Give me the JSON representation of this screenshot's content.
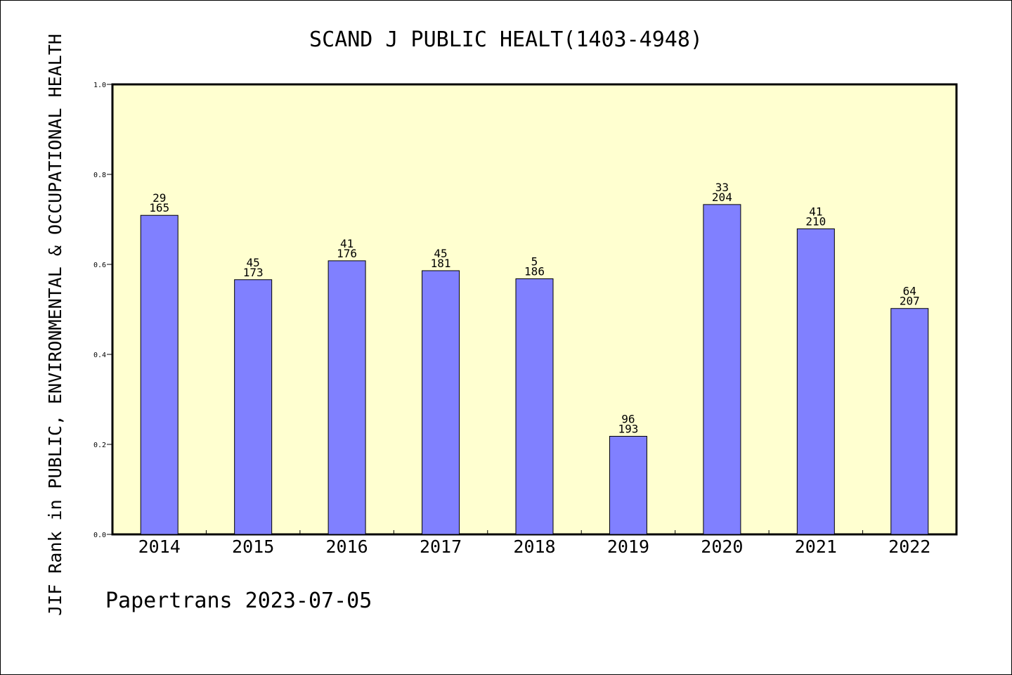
{
  "chart_data": {
    "type": "bar",
    "title": "SCAND J PUBLIC HEALT(1403-4948)",
    "ylabel": "JIF Rank in PUBLIC, ENVIRONMENTAL & OCCUPATIONAL HEALTH",
    "xlabel": "",
    "footer": "Papertrans 2023-07-05",
    "ylim": [
      0,
      1.0
    ],
    "yticks": [
      "0.0",
      "0.2",
      "0.4",
      "0.6",
      "0.8",
      "1.0"
    ],
    "categories": [
      "2014",
      "2015",
      "2016",
      "2017",
      "2018",
      "2019",
      "2020",
      "2021",
      "2022"
    ],
    "values": [
      0.709,
      0.566,
      0.608,
      0.586,
      0.568,
      0.218,
      0.733,
      0.679,
      0.502
    ],
    "rank_labels": [
      "29",
      "45",
      "41",
      "45",
      "5",
      "96",
      "33",
      "41",
      "64"
    ],
    "total_labels": [
      "165",
      "173",
      "176",
      "181",
      "186",
      "193",
      "204",
      "210",
      "207"
    ],
    "grid": false,
    "legend": "none",
    "colors": {
      "plot_bg": "#ffffd0",
      "bar_fill": "#8080ff",
      "bar_stroke": "#000000"
    }
  }
}
